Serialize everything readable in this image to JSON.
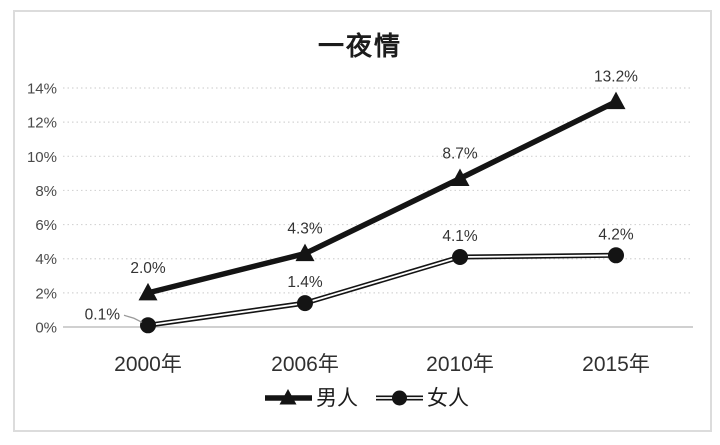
{
  "chart_data": {
    "type": "line",
    "title": "一夜情",
    "categories": [
      "2000年",
      "2006年",
      "2010年",
      "2015年"
    ],
    "series": [
      {
        "name": "男人",
        "values": [
          2.0,
          4.3,
          8.7,
          13.2
        ],
        "labels": [
          "2.0%",
          "4.3%",
          "8.7%",
          "13.2%"
        ],
        "marker": "triangle",
        "line_style": "thick-solid"
      },
      {
        "name": "女人",
        "values": [
          0.1,
          1.4,
          4.1,
          4.2
        ],
        "labels": [
          "0.1%",
          "1.4%",
          "4.1%",
          "4.2%"
        ],
        "marker": "circle",
        "line_style": "double"
      }
    ],
    "y_ticks": [
      "0%",
      "2%",
      "4%",
      "6%",
      "8%",
      "10%",
      "12%",
      "14%"
    ],
    "y_tick_values": [
      0,
      2,
      4,
      6,
      8,
      10,
      12,
      14
    ],
    "ylim": [
      0,
      14
    ],
    "xlabel": "",
    "ylabel": "",
    "grid": "dotted-horizontal",
    "legend_position": "bottom",
    "colors": {
      "series": "#141414",
      "gridline": "#d4d4d4",
      "axis_line": "#c0c0c0",
      "tick_label": "#4a4a4a",
      "x_label": "#303030",
      "data_label": "#333333",
      "leader_line": "#999999",
      "frame_border": "#dcdcdc"
    }
  }
}
